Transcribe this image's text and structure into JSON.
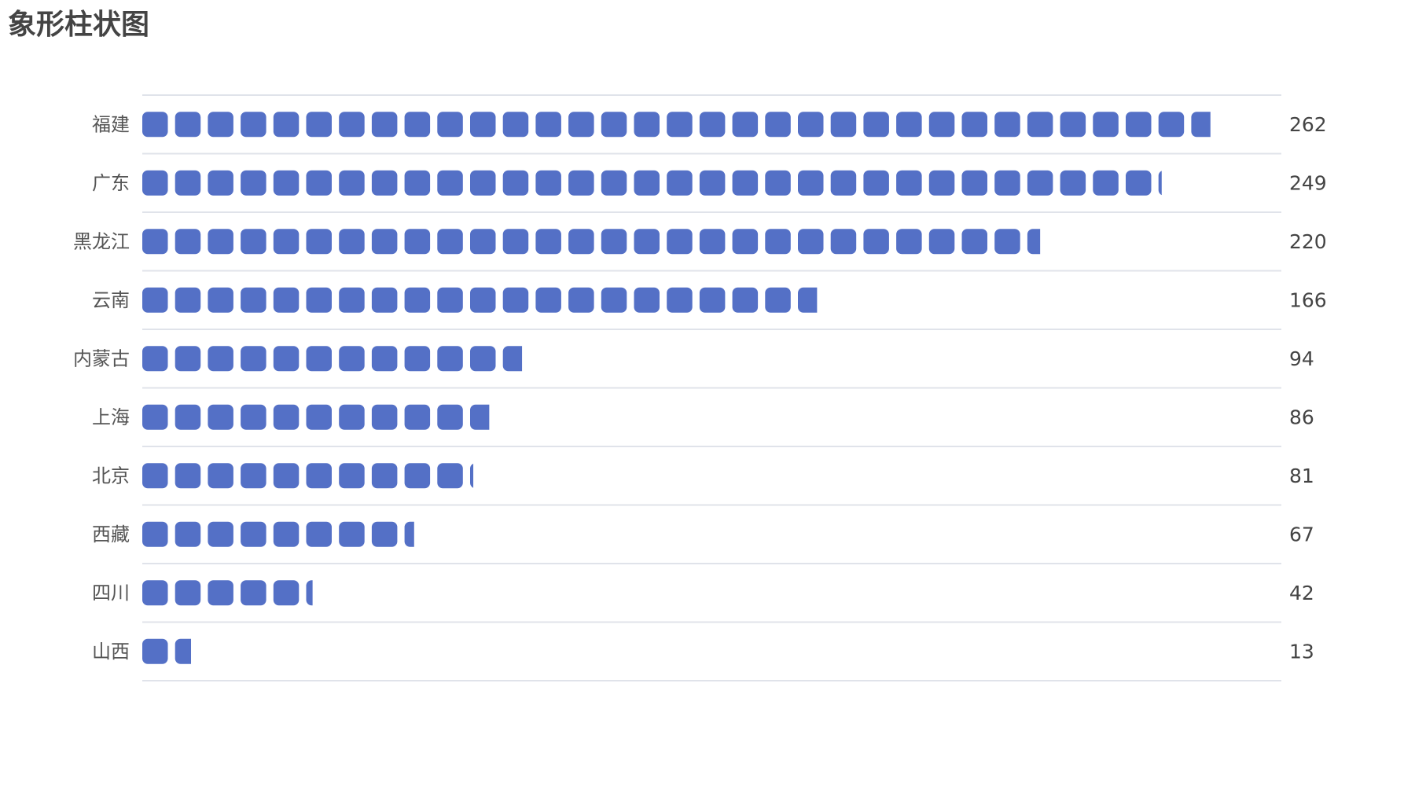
{
  "chart_data": {
    "type": "bar",
    "orientation": "horizontal",
    "style": "pictorial",
    "title": "象形柱状图",
    "categories": [
      "福建",
      "广东",
      "黑龙江",
      "云南",
      "内蒙古",
      "上海",
      "北京",
      "西藏",
      "四川",
      "山西"
    ],
    "values": [
      262,
      249,
      220,
      166,
      94,
      86,
      81,
      67,
      42,
      13
    ],
    "symbol": "rounded-square",
    "symbol_unit_value": 8,
    "xlim": [
      0,
      300
    ],
    "grid": true,
    "legend": "none",
    "series_color": "#5470c6"
  }
}
